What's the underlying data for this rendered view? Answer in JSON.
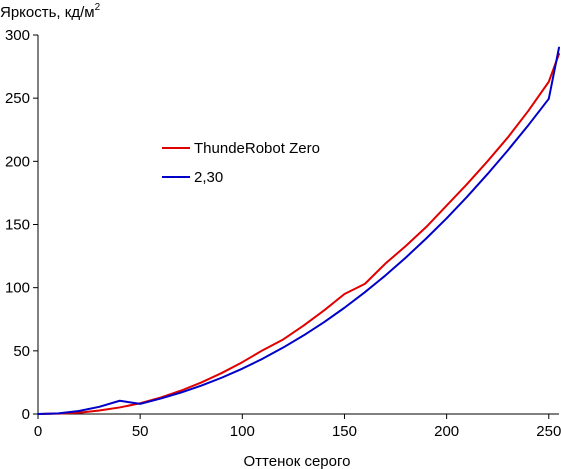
{
  "chart_data": {
    "type": "line",
    "ylabel": "Яркость, кд/м",
    "ylabel_superscript": "2",
    "xlabel": "Оттенок серого",
    "xlim": [
      0,
      255
    ],
    "ylim": [
      0,
      300
    ],
    "x_ticks": [
      0,
      50,
      100,
      150,
      200,
      250
    ],
    "y_ticks": [
      0,
      50,
      100,
      150,
      200,
      250,
      300
    ],
    "x_tick_labels": [
      "0",
      "50",
      "100",
      "150",
      "200",
      "250"
    ],
    "y_tick_labels": [
      "0",
      "50",
      "100",
      "150",
      "200",
      "250",
      "300"
    ],
    "grid": false,
    "legend_position": "center-left",
    "series": [
      {
        "name": "ThundeRobot Zero",
        "color": "#e00000",
        "x": [
          0,
          10,
          20,
          30,
          40,
          50,
          60,
          70,
          80,
          90,
          100,
          110,
          120,
          130,
          140,
          150,
          160,
          170,
          180,
          190,
          200,
          210,
          220,
          230,
          240,
          250,
          255
        ],
        "y": [
          0,
          0.3,
          1.0,
          2.8,
          5.2,
          8.5,
          13.0,
          18.5,
          25.0,
          32.5,
          41.0,
          50.5,
          59.0,
          70.0,
          82.0,
          95.0,
          103.0,
          119.0,
          133.0,
          148.0,
          165.0,
          182.0,
          200.0,
          219.0,
          240.0,
          263.0,
          285.0
        ]
      },
      {
        "name": "2,30",
        "color": "#0000c8",
        "x": [
          0,
          10,
          20,
          30,
          40,
          50,
          60,
          70,
          80,
          90,
          100,
          110,
          120,
          130,
          140,
          150,
          160,
          170,
          180,
          190,
          200,
          210,
          220,
          230,
          240,
          250,
          255
        ],
        "y": [
          0,
          0.5,
          2.4,
          5.7,
          10.5,
          8.0,
          12.2,
          17.0,
          22.5,
          28.8,
          35.9,
          43.8,
          52.6,
          62.2,
          72.7,
          84.1,
          96.4,
          109.6,
          123.8,
          138.9,
          154.9,
          171.9,
          189.9,
          208.8,
          228.6,
          249.5,
          290.0
        ]
      }
    ]
  }
}
